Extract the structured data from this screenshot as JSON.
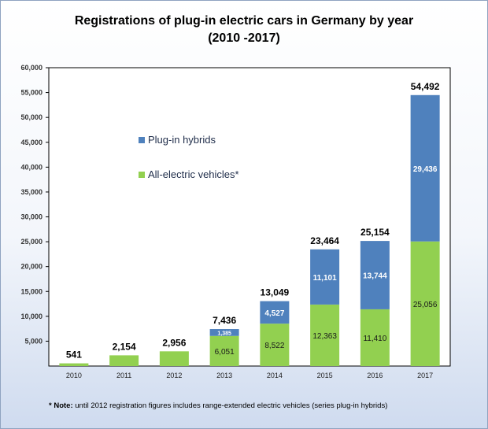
{
  "chart_data": {
    "type": "bar",
    "stacked": true,
    "title_line1": "Registrations of plug-in electric cars in Germany by year",
    "title_line2": "(2010 -2017)",
    "categories": [
      "2010",
      "2011",
      "2012",
      "2013",
      "2014",
      "2015",
      "2016",
      "2017"
    ],
    "series": [
      {
        "name": "All-electric vehicles*",
        "color": "#92d050",
        "values": [
          541,
          2154,
          2956,
          6051,
          8522,
          12363,
          11410,
          25056
        ],
        "labels": [
          "",
          "",
          "",
          "6,051",
          "8,522",
          "12,363",
          "11,410",
          "25,056"
        ]
      },
      {
        "name": "Plug-in hybrids",
        "color": "#4f81bd",
        "values": [
          0,
          0,
          0,
          1385,
          4527,
          11101,
          13744,
          29436
        ],
        "labels": [
          "",
          "",
          "",
          "1,385",
          "4,527",
          "11,101",
          "13,744",
          "29,436"
        ]
      }
    ],
    "totals": [
      "541",
      "2,154",
      "2,956",
      "7,436",
      "13,049",
      "23,464",
      "25,154",
      "54,492"
    ],
    "ylim": [
      0,
      60000
    ],
    "yticks": [
      "5,000",
      "10,000",
      "15,000",
      "20,000",
      "25,000",
      "30,000",
      "35,000",
      "40,000",
      "45,000",
      "50,000",
      "55,000",
      "60,000"
    ],
    "ytick_values": [
      5000,
      10000,
      15000,
      20000,
      25000,
      30000,
      35000,
      40000,
      45000,
      50000,
      55000,
      60000
    ],
    "legend_order": [
      "Plug-in hybrids",
      "All-electric vehicles*"
    ],
    "grid": false
  },
  "note": {
    "marker": "* Note:",
    "text": " until 2012 registration figures includes range-extended electric vehicles (series plug-in hybrids)"
  }
}
